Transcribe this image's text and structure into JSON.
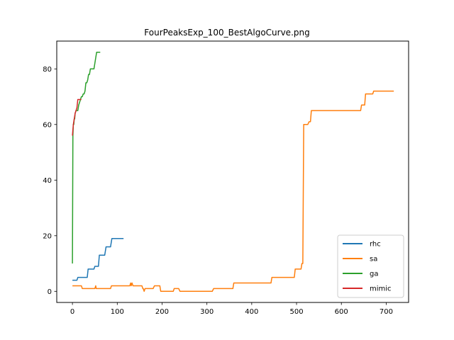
{
  "chart_data": {
    "type": "line",
    "title": "FourPeaksExp_100_BestAlgoCurve.png",
    "xlabel": "",
    "ylabel": "",
    "xlim": [
      -35,
      750
    ],
    "ylim": [
      -4,
      90
    ],
    "xticks": [
      0,
      100,
      200,
      300,
      400,
      500,
      600,
      700
    ],
    "yticks": [
      0,
      20,
      40,
      60,
      80
    ],
    "grid": false,
    "legend_position": "lower-right",
    "series": [
      {
        "name": "rhc",
        "color": "#1f77b4",
        "x": [
          0,
          10,
          12,
          20,
          33,
          35,
          48,
          50,
          58,
          60,
          72,
          75,
          85,
          88,
          114
        ],
        "y": [
          4,
          4,
          5,
          5,
          5,
          8,
          8,
          9,
          9,
          13,
          13,
          16,
          16,
          19,
          19
        ]
      },
      {
        "name": "sa",
        "color": "#ff7f0e",
        "x": [
          0,
          20,
          22,
          50,
          52,
          53,
          55,
          85,
          87,
          128,
          130,
          131,
          133,
          135,
          155,
          157,
          158,
          160,
          162,
          165,
          180,
          183,
          195,
          197,
          225,
          227,
          237,
          240,
          312,
          315,
          358,
          360,
          443,
          445,
          495,
          497,
          510,
          512,
          514,
          516,
          525,
          528,
          531,
          533,
          643,
          645,
          652,
          654,
          670,
          672,
          717
        ],
        "y": [
          2,
          2,
          1,
          1,
          2,
          1,
          1,
          1,
          2,
          2,
          3,
          2,
          3,
          2,
          2,
          1,
          1,
          0,
          1,
          1,
          1,
          2,
          2,
          0,
          0,
          1,
          1,
          0,
          0,
          1,
          1,
          3,
          3,
          5,
          5,
          8,
          8,
          10,
          10,
          60,
          60,
          61,
          61,
          65,
          65,
          67,
          67,
          71,
          71,
          72,
          72
        ]
      },
      {
        "name": "ga",
        "color": "#2ca02c",
        "x": [
          0,
          1,
          2,
          3,
          4,
          5,
          6,
          8,
          10,
          12,
          14,
          16,
          18,
          20,
          22,
          24,
          26,
          28,
          30,
          32,
          34,
          36,
          38,
          40,
          42,
          44,
          46,
          48,
          50,
          52,
          54,
          56,
          58,
          60,
          62
        ],
        "y": [
          10,
          56,
          60,
          60,
          62,
          62,
          64,
          65,
          65,
          65,
          67,
          68,
          69,
          70,
          70,
          71,
          71,
          72,
          75,
          75,
          76,
          78,
          78,
          80,
          80,
          80,
          80,
          80,
          82,
          84,
          86,
          86,
          86,
          86,
          86
        ]
      },
      {
        "name": "mimic",
        "color": "#d62728",
        "x": [
          0,
          1,
          2,
          3,
          4,
          5,
          6,
          8,
          10,
          12,
          15,
          18,
          20
        ],
        "y": [
          56,
          58,
          60,
          61,
          62,
          63,
          64,
          65,
          66,
          69,
          69,
          69,
          69
        ]
      }
    ]
  }
}
